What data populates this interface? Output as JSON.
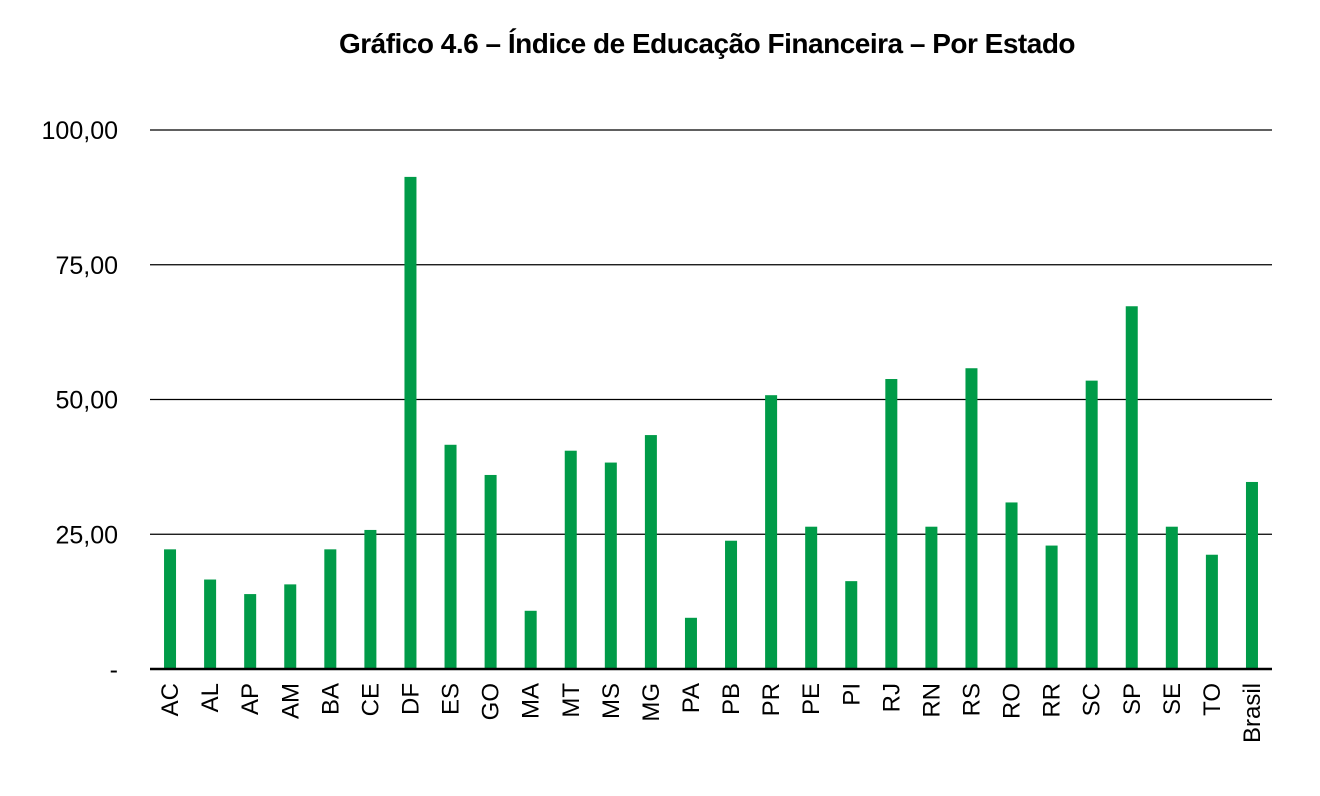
{
  "chart_data": {
    "type": "bar",
    "title": "Gráfico 4.6 – Índice de Educação Financeira – Por Estado",
    "xlabel": "",
    "ylabel": "",
    "ylim": [
      0,
      100
    ],
    "yticks": [
      {
        "value": 0,
        "label": "-"
      },
      {
        "value": 25,
        "label": "25,00"
      },
      {
        "value": 50,
        "label": "50,00"
      },
      {
        "value": 75,
        "label": "75,00"
      },
      {
        "value": 100,
        "label": "100,00"
      }
    ],
    "grid": true,
    "bar_color": "#009B48",
    "categories": [
      "AC",
      "AL",
      "AP",
      "AM",
      "BA",
      "CE",
      "DF",
      "ES",
      "GO",
      "MA",
      "MT",
      "MS",
      "MG",
      "PA",
      "PB",
      "PR",
      "PE",
      "PI",
      "RJ",
      "RN",
      "RS",
      "RO",
      "RR",
      "SC",
      "SP",
      "SE",
      "TO",
      "Brasil"
    ],
    "values": [
      22.2,
      16.6,
      13.9,
      15.7,
      22.2,
      25.8,
      91.3,
      41.6,
      36.0,
      10.8,
      40.5,
      38.3,
      43.4,
      9.5,
      23.8,
      50.8,
      26.4,
      16.3,
      53.8,
      26.4,
      55.8,
      30.9,
      22.9,
      53.5,
      67.3,
      26.4,
      21.2,
      34.7
    ]
  }
}
